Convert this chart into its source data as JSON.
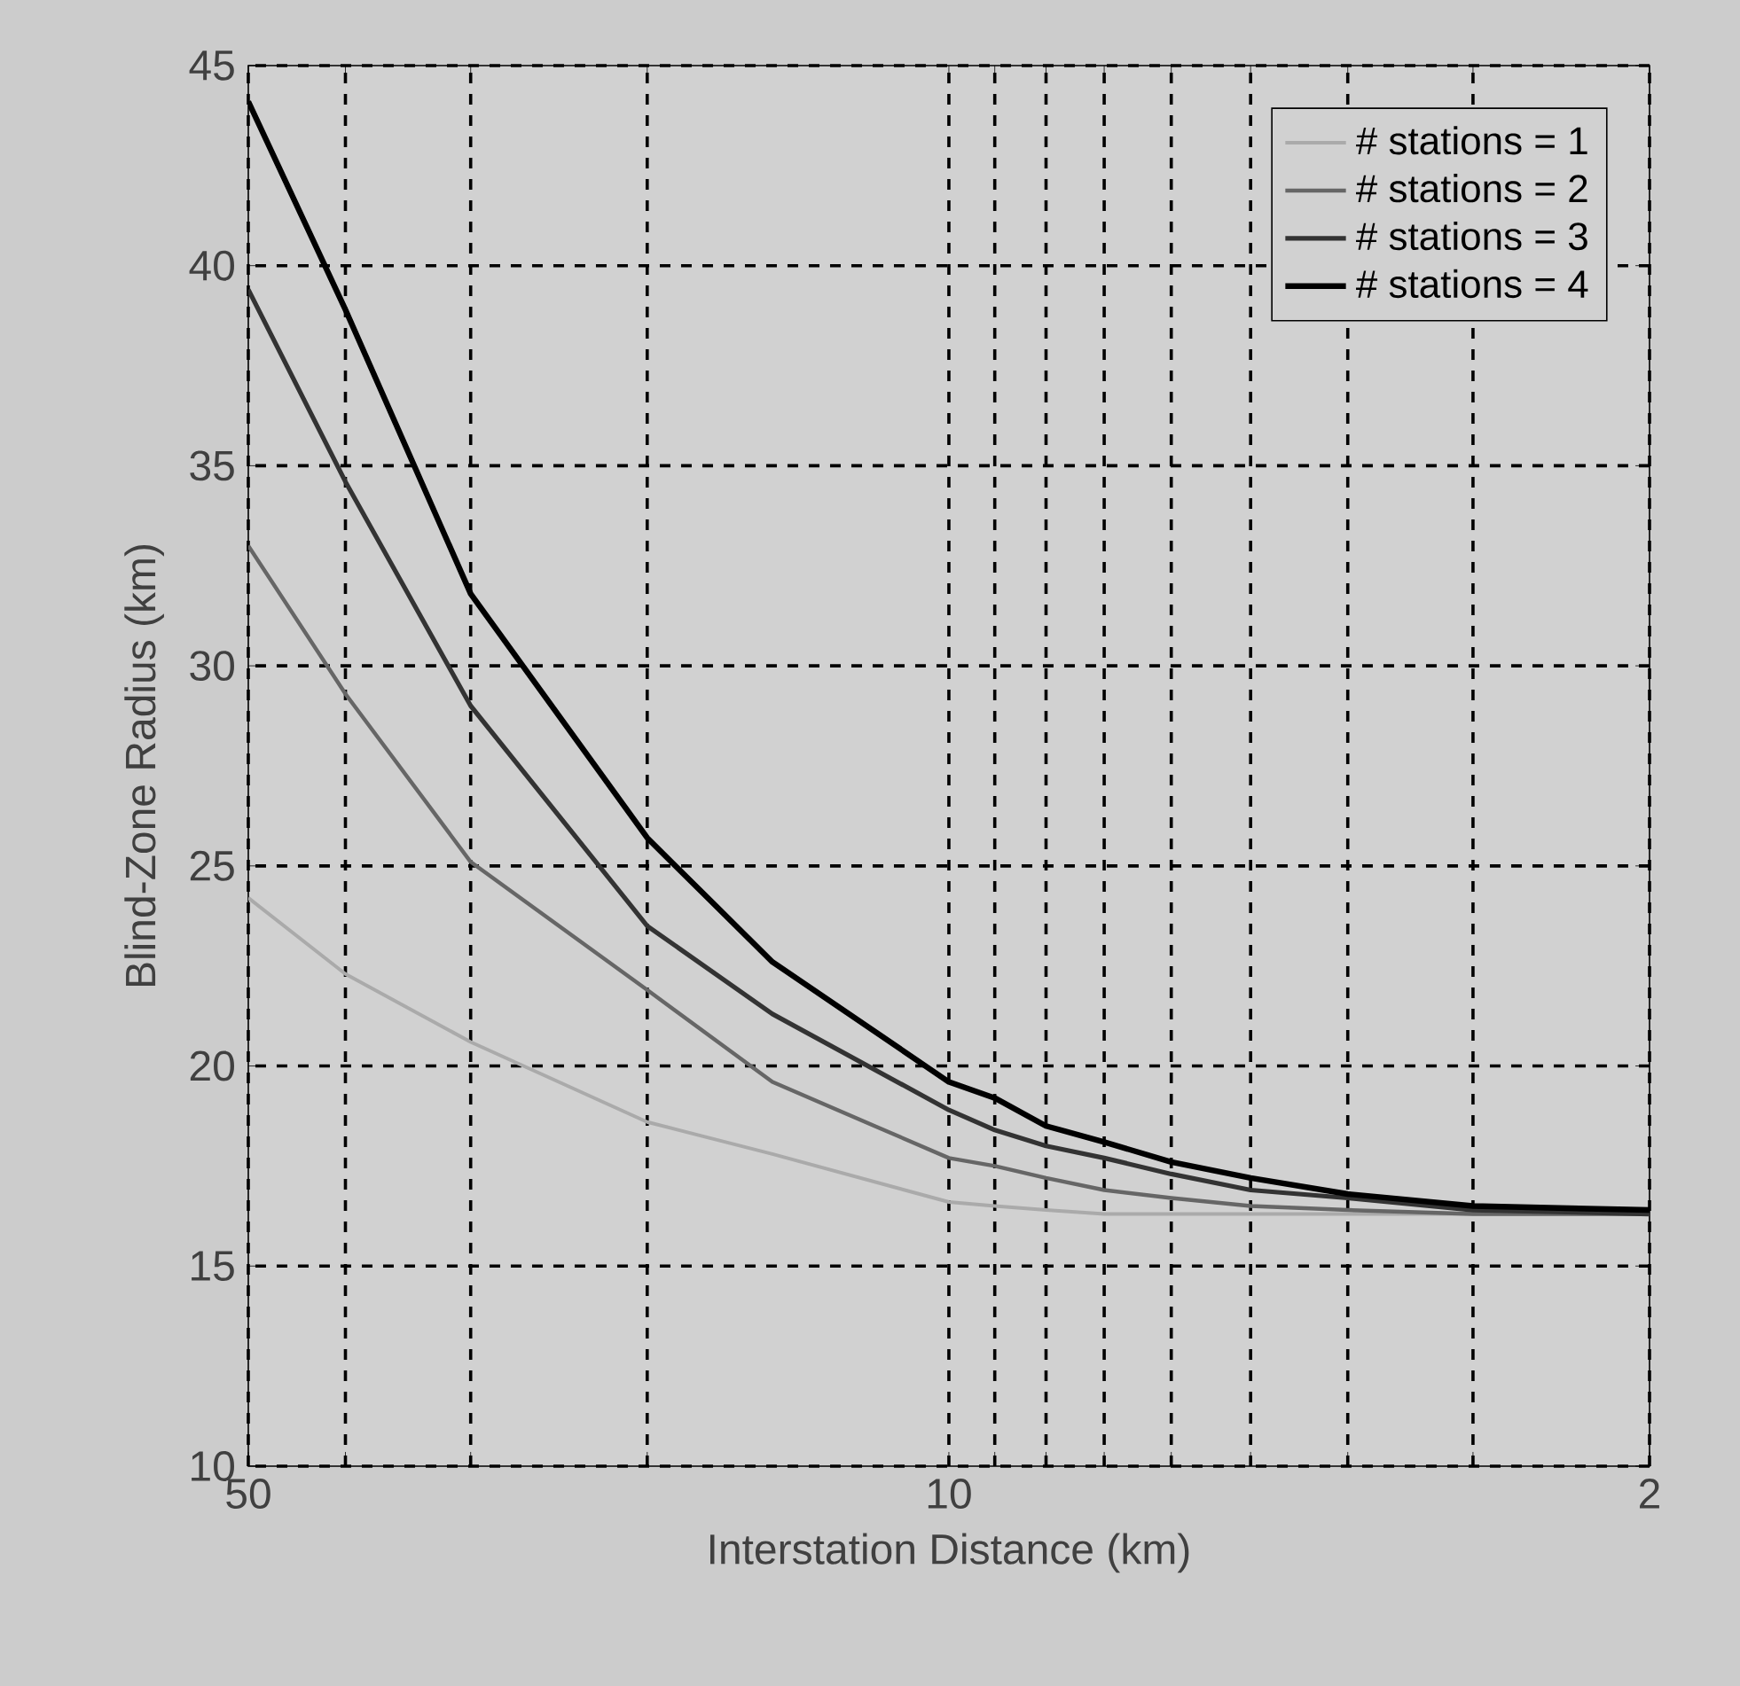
{
  "chart_data": {
    "type": "line",
    "xlabel": "Interstation Distance (km)",
    "ylabel": "Blind-Zone Radius (km)",
    "x": [
      50,
      40,
      30,
      20,
      15,
      10,
      9,
      8,
      7,
      6,
      5,
      4,
      3,
      2
    ],
    "series": [
      {
        "name": "# stations = 1",
        "color": "#aaaaaa",
        "values": [
          24.2,
          22.3,
          20.6,
          18.6,
          17.8,
          16.6,
          16.5,
          16.4,
          16.3,
          16.3,
          16.3,
          16.3,
          16.3,
          16.3
        ]
      },
      {
        "name": "# stations = 2",
        "color": "#666666",
        "values": [
          33.0,
          29.3,
          25.1,
          21.9,
          19.6,
          17.7,
          17.5,
          17.2,
          16.9,
          16.7,
          16.5,
          16.4,
          16.3,
          16.3
        ]
      },
      {
        "name": "# stations = 3",
        "color": "#333333",
        "values": [
          39.4,
          34.6,
          29.0,
          23.5,
          21.3,
          18.9,
          18.4,
          18.0,
          17.7,
          17.3,
          16.9,
          16.7,
          16.4,
          16.3
        ]
      },
      {
        "name": "# stations = 4",
        "color": "#000000",
        "values": [
          44.1,
          38.9,
          31.8,
          25.7,
          22.6,
          19.6,
          19.2,
          18.5,
          18.1,
          17.6,
          17.2,
          16.8,
          16.5,
          16.4
        ]
      }
    ],
    "xlim": [
      50,
      2
    ],
    "ylim": [
      10,
      45
    ],
    "xticks": [
      50,
      {
        "value": 40,
        "label": null
      },
      {
        "value": 30,
        "label": null
      },
      {
        "value": 20,
        "label": null
      },
      10,
      {
        "value": 9,
        "label": null
      },
      {
        "value": 8,
        "label": null
      },
      {
        "value": 7,
        "label": null
      },
      {
        "value": 6,
        "label": null
      },
      {
        "value": 5,
        "label": null
      },
      {
        "value": 4,
        "label": null
      },
      {
        "value": 3,
        "label": null
      },
      2
    ],
    "yticks": [
      10,
      15,
      20,
      25,
      30,
      35,
      40,
      45
    ],
    "log": "x",
    "grid": true,
    "legend": "top right",
    "marker": "none",
    "line_style": "solid"
  }
}
